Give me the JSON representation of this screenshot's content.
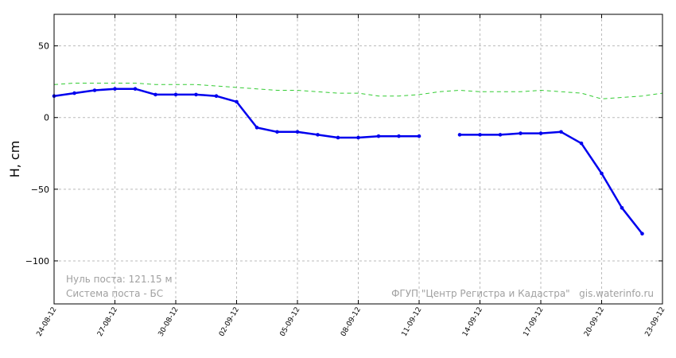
{
  "chart_data": {
    "type": "line",
    "ylabel": "H, cm",
    "xlabel": "",
    "ylim": [
      -130,
      72
    ],
    "yticks": [
      50,
      0,
      -50,
      -100
    ],
    "ytick_labels": [
      "50",
      "0",
      "−50",
      "−100"
    ],
    "x_range_days": [
      0,
      30
    ],
    "xticks": [
      {
        "day": 0,
        "label": "24-08-12"
      },
      {
        "day": 3,
        "label": "27-08-12"
      },
      {
        "day": 6,
        "label": "30-08-12"
      },
      {
        "day": 9,
        "label": "02-09-12"
      },
      {
        "day": 12,
        "label": "05-09-12"
      },
      {
        "day": 15,
        "label": "08-09-12"
      },
      {
        "day": 18,
        "label": "11-09-12"
      },
      {
        "day": 21,
        "label": "14-09-12"
      },
      {
        "day": 24,
        "label": "17-09-12"
      },
      {
        "day": 27,
        "label": "20-09-12"
      },
      {
        "day": 30,
        "label": "23-09-12"
      }
    ],
    "grid": true,
    "series": [
      {
        "color": "#0000ee",
        "style": "solid",
        "markers": true,
        "segments": [
          [
            [
              0,
              15
            ],
            [
              1,
              17
            ],
            [
              2,
              19
            ],
            [
              3,
              20
            ],
            [
              4,
              20
            ],
            [
              5,
              16
            ],
            [
              6,
              16
            ],
            [
              7,
              16
            ],
            [
              8,
              15
            ],
            [
              9,
              11
            ],
            [
              10,
              -7
            ],
            [
              11,
              -10
            ],
            [
              12,
              -10
            ],
            [
              13,
              -12
            ],
            [
              14,
              -14
            ],
            [
              15,
              -14
            ],
            [
              16,
              -13
            ],
            [
              17,
              -13
            ],
            [
              18,
              -13
            ]
          ],
          [
            [
              20,
              -12
            ],
            [
              21,
              -12
            ],
            [
              22,
              -12
            ],
            [
              23,
              -11
            ],
            [
              24,
              -11
            ],
            [
              25,
              -10
            ],
            [
              26,
              -18
            ],
            [
              27,
              -39
            ],
            [
              28,
              -63
            ],
            [
              29,
              -81
            ]
          ]
        ]
      },
      {
        "color": "#33cc33",
        "style": "dashed",
        "markers": false,
        "segments": [
          [
            [
              0,
              23
            ],
            [
              1,
              24
            ],
            [
              2,
              24
            ],
            [
              3,
              24
            ],
            [
              4,
              24
            ],
            [
              5,
              23
            ],
            [
              6,
              23
            ],
            [
              7,
              23
            ],
            [
              8,
              22
            ],
            [
              9,
              21
            ],
            [
              10,
              20
            ],
            [
              11,
              19
            ],
            [
              12,
              19
            ],
            [
              13,
              18
            ],
            [
              14,
              17
            ],
            [
              15,
              17
            ],
            [
              16,
              15
            ],
            [
              17,
              15
            ],
            [
              18,
              16
            ],
            [
              19,
              18
            ],
            [
              20,
              19
            ],
            [
              21,
              18
            ],
            [
              22,
              18
            ],
            [
              23,
              18
            ],
            [
              24,
              19
            ],
            [
              25,
              18
            ],
            [
              26,
              17
            ],
            [
              27,
              13
            ],
            [
              28,
              14
            ],
            [
              29,
              15
            ],
            [
              30,
              17
            ]
          ]
        ]
      }
    ]
  },
  "annotations": {
    "zero_level": "Нуль поста: 121.15 м",
    "system": "Система поста - БС",
    "source": "ФГУП \"Центр Регистра и Кадастра\"   gis.waterinfo.ru"
  },
  "colors": {
    "grid": "#bbbbbb",
    "frame": "#000000"
  }
}
